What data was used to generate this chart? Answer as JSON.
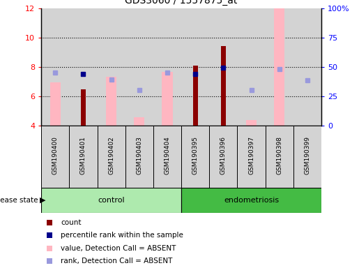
{
  "title": "GDS3060 / 1557875_at",
  "samples": [
    "GSM190400",
    "GSM190401",
    "GSM190402",
    "GSM190403",
    "GSM190404",
    "GSM190395",
    "GSM190396",
    "GSM190397",
    "GSM190398",
    "GSM190399"
  ],
  "ylim": [
    4,
    12
  ],
  "ylim_right": [
    0,
    100
  ],
  "yticks_left": [
    4,
    6,
    8,
    10,
    12
  ],
  "yticks_right": [
    0,
    25,
    50,
    75,
    100
  ],
  "red_bars": [
    null,
    6.5,
    null,
    null,
    null,
    8.1,
    9.4,
    null,
    null,
    null
  ],
  "pink_bars": [
    6.95,
    null,
    7.35,
    4.6,
    7.65,
    null,
    null,
    4.4,
    12.0,
    null
  ],
  "blue_square_y": [
    null,
    7.55,
    null,
    null,
    null,
    7.55,
    7.95,
    null,
    null,
    null
  ],
  "light_blue_square_y": [
    7.6,
    null,
    7.15,
    6.45,
    7.6,
    null,
    null,
    6.45,
    7.85,
    7.1
  ],
  "gray_bg": "#d3d3d3",
  "pink_color": "#FFB6C1",
  "red_color": "#8B0000",
  "blue_color": "#00008B",
  "light_blue_color": "#9999DD",
  "control_color": "#AEEAAE",
  "endo_color": "#44BB44",
  "legend_labels": [
    "count",
    "percentile rank within the sample",
    "value, Detection Call = ABSENT",
    "rank, Detection Call = ABSENT"
  ],
  "legend_colors": [
    "#8B0000",
    "#00008B",
    "#FFB6C1",
    "#9999DD"
  ]
}
